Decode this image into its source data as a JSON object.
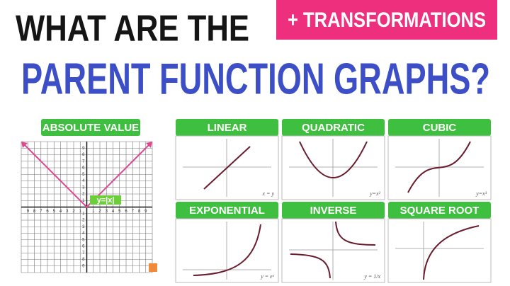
{
  "header": {
    "title_line_1": "WHAT ARE THE",
    "badge": "+ TRANSFORMATIONS",
    "title_line_2": "PARENT FUNCTION GRAPHS?"
  },
  "main_graph": {
    "label": "ABSOLUTE VALUE",
    "equation": "y=|x|",
    "x_tick_labels": [
      "9",
      "8",
      "7",
      "6",
      "5",
      "4",
      "3",
      "2",
      "1",
      "1",
      "2",
      "3",
      "4",
      "5",
      "6",
      "7",
      "8",
      "9"
    ],
    "y_tick_labels": [
      "9",
      "8",
      "7",
      "6",
      "5",
      "4",
      "3",
      "2",
      "1",
      "1",
      "2",
      "3",
      "4",
      "5",
      "6",
      "7",
      "8",
      "9"
    ]
  },
  "panels": [
    {
      "label": "LINEAR",
      "equation": "x = y"
    },
    {
      "label": "QUADRATIC",
      "equation": "y=x²"
    },
    {
      "label": "CUBIC",
      "equation": "y=x³"
    },
    {
      "label": "EXPONENTIAL",
      "equation": "y = eˣ"
    },
    {
      "label": "INVERSE",
      "equation": "y = 1/x"
    },
    {
      "label": "SQUARE ROOT"
    }
  ]
}
